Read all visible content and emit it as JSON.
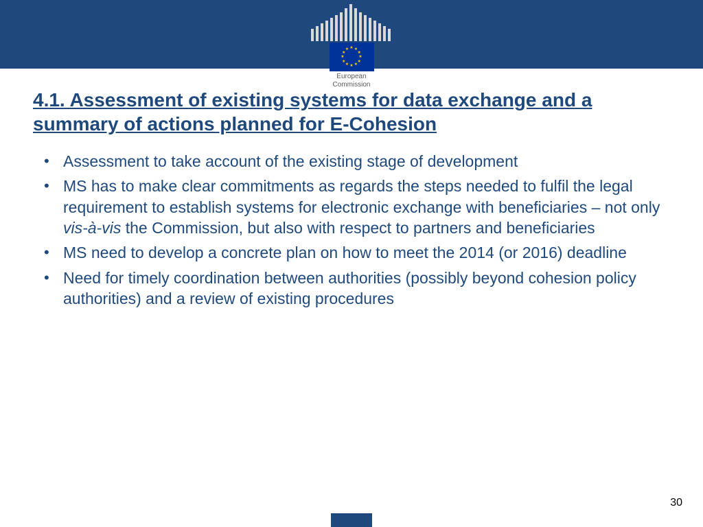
{
  "colors": {
    "band": "#1f497d",
    "text": "#1f497d",
    "flag_bg": "#003399",
    "star": "#ffcc00",
    "page_num": "#000000",
    "building": "#d9d9d9",
    "ec_label": "#5a5a5a",
    "background": "#ffffff"
  },
  "logo": {
    "label_line1": "European",
    "label_line2": "Commission"
  },
  "title": "4.1. Assessment of existing systems for data exchange and a summary of actions planned for E-Cohesion",
  "title_fontsize": 28,
  "bullet_fontsize": 23,
  "bullets": [
    {
      "segments": [
        {
          "text": "Assessment to take account of the existing stage of development",
          "italic": false
        }
      ]
    },
    {
      "segments": [
        {
          "text": "MS has to make clear commitments as regards the steps needed to fulfil the legal requirement to establish systems for electronic exchange with beneficiaries – not only ",
          "italic": false
        },
        {
          "text": "vis-à-vis",
          "italic": true
        },
        {
          "text": " the Commission, but also with respect to partners and beneficiaries",
          "italic": false
        }
      ]
    },
    {
      "segments": [
        {
          "text": "MS need to develop a concrete plan on how to meet the 2014 (or 2016) deadline",
          "italic": false
        }
      ]
    },
    {
      "segments": [
        {
          "text": "Need for timely coordination between authorities (possibly beyond cohesion policy authorities) and a review of existing procedures",
          "italic": false
        }
      ]
    }
  ],
  "page_number": "30"
}
